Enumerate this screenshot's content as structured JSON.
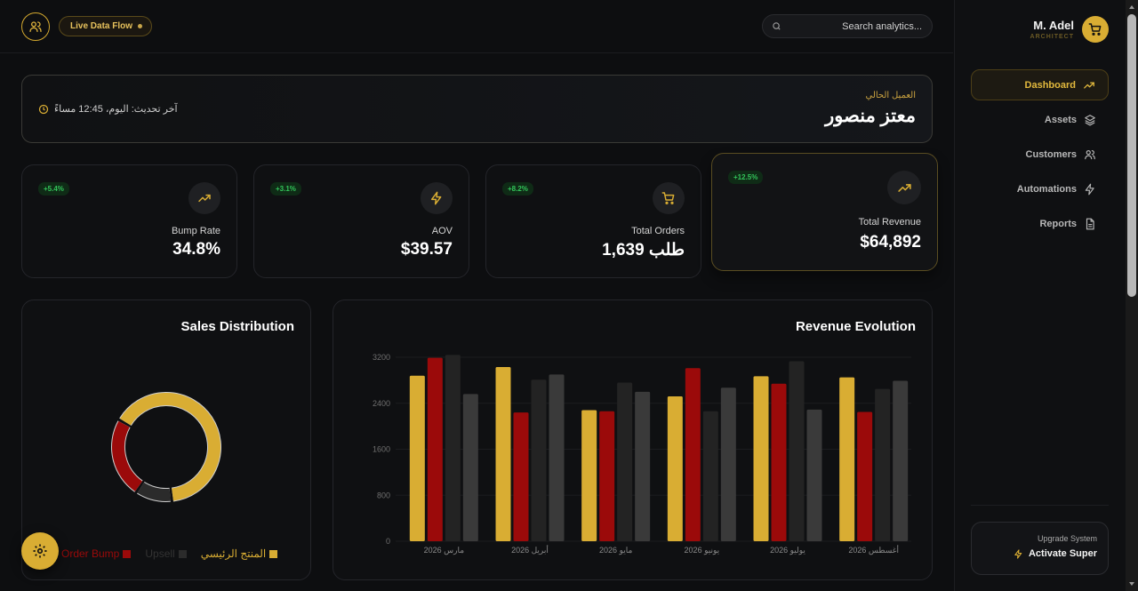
{
  "header": {
    "live_label": "Live Data Flow",
    "search_placeholder": "Search analytics..."
  },
  "sidebar": {
    "user_name": "M. Adel",
    "user_role": "ARCHITECT",
    "items": [
      {
        "label": "Dashboard",
        "icon": "trending-up-icon",
        "active": true
      },
      {
        "label": "Assets",
        "icon": "layers-icon",
        "active": false
      },
      {
        "label": "Customers",
        "icon": "users-icon",
        "active": false
      },
      {
        "label": "Automations",
        "icon": "zap-icon",
        "active": false
      },
      {
        "label": "Reports",
        "icon": "file-icon",
        "active": false
      }
    ],
    "upgrade_title": "Upgrade System",
    "upgrade_cta": "Activate Super"
  },
  "client": {
    "label": "العميل الحالي",
    "name": "معتز منصور",
    "updated": "آخر تحديث: اليوم، 12:45 مساءً"
  },
  "kpis": [
    {
      "label": "Bump Rate",
      "value": "34.8%",
      "change": "+5.4%",
      "icon": "trending-up-icon"
    },
    {
      "label": "AOV",
      "value": "$39.57",
      "change": "+3.1%",
      "icon": "zap-icon"
    },
    {
      "label": "Total Orders",
      "value": "1,639 طلب",
      "change": "+8.2%",
      "icon": "cart-icon"
    },
    {
      "label": "Total Revenue",
      "value": "$64,892",
      "change": "+12.5%",
      "icon": "trending-up-icon"
    }
  ],
  "colors": {
    "accent": "#d9ad33",
    "red": "#9b0a0a",
    "dark1": "#262626",
    "dark2": "#3a3a3a",
    "positive": "#33c45a"
  },
  "chart_data": [
    {
      "type": "bar",
      "title": "Revenue Evolution",
      "categories": [
        "مارس 2026",
        "أبريل 2026",
        "مايو 2026",
        "يونيو 2026",
        "يوليو 2026",
        "أغسطس 2026"
      ],
      "yticks": [
        0,
        800,
        1600,
        2400,
        3200
      ],
      "ylim": [
        0,
        3200
      ],
      "series": [
        {
          "values": [
            2880,
            3030,
            2280,
            2520,
            2870,
            2850
          ],
          "color": "#d9ad33"
        },
        {
          "values": [
            3190,
            2240,
            2260,
            3010,
            2740,
            2250
          ],
          "color": "#9b0a0a"
        },
        {
          "values": [
            3240,
            2810,
            2760,
            2260,
            3130,
            2650
          ],
          "color": "#232323"
        },
        {
          "values": [
            2560,
            2900,
            2600,
            2670,
            2290,
            2790
          ],
          "color": "#3a3a3a"
        }
      ]
    },
    {
      "type": "pie",
      "title": "Sales Distribution",
      "slices": [
        {
          "label": "المنتج الرئيسي",
          "value": 65,
          "color": "#d9ad33"
        },
        {
          "label": "Upsell",
          "value": 11,
          "color": "#2b2b2b"
        },
        {
          "label": "Order Bump",
          "value": 24,
          "color": "#9b0a0a"
        }
      ]
    }
  ]
}
